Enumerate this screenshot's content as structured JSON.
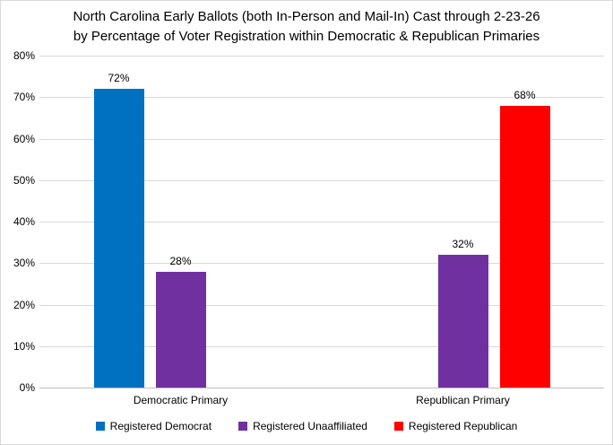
{
  "title": {
    "line1": "North Carolina Early Ballots (both In-Person and Mail-In) Cast through 2-23-26",
    "line2": "by Percentage of Voter Registration within Democratic & Republican Primaries"
  },
  "chart_data": {
    "type": "bar",
    "categories": [
      "Democratic Primary",
      "Republican Primary"
    ],
    "series": [
      {
        "name": "Registered Democrat",
        "color": "#0070C0",
        "values": [
          72,
          null
        ]
      },
      {
        "name": "Registered Unaaffiliated",
        "color": "#7030A0",
        "values": [
          28,
          32
        ]
      },
      {
        "name": "Registered Republican",
        "color": "#FF0000",
        "values": [
          null,
          68
        ]
      }
    ],
    "data_labels": [
      {
        "series": "Registered Democrat",
        "category": "Democratic Primary",
        "label": "72%"
      },
      {
        "series": "Registered Unaaffiliated",
        "category": "Democratic Primary",
        "label": "28%"
      },
      {
        "series": "Registered Unaaffiliated",
        "category": "Republican Primary",
        "label": "32%"
      },
      {
        "series": "Registered Republican",
        "category": "Republican Primary",
        "label": "68%"
      }
    ],
    "data_label_suffix": "%",
    "ylim": [
      0,
      80
    ],
    "ytick_step": 10,
    "yticks": [
      "0%",
      "10%",
      "20%",
      "30%",
      "40%",
      "50%",
      "60%",
      "70%",
      "80%"
    ],
    "xlabel": "",
    "ylabel": "",
    "grid": true,
    "legend_position": "bottom",
    "colors": {
      "background": "#FFFFFF",
      "gridline": "#D9D9D9",
      "axis_line": "#BFBFBF",
      "text": "#000000"
    }
  }
}
